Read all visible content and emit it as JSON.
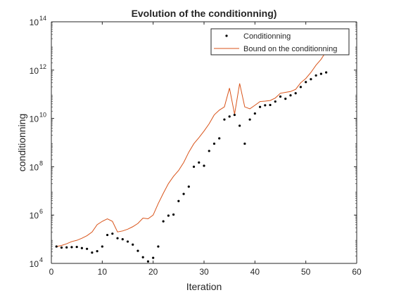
{
  "chart_data": {
    "type": "line",
    "title": "Evolution of the conditionning)",
    "xlabel": "Iteration",
    "ylabel": "conditionning",
    "xlim": [
      0,
      60
    ],
    "ylim": [
      10000,
      100000000000000
    ],
    "yscale": "log",
    "grid": false,
    "legend_position": "top-right",
    "x_ticks": [
      "0",
      "10",
      "20",
      "30",
      "40",
      "50",
      "60"
    ],
    "y_ticks": [
      {
        "base": "10",
        "exp": "4"
      },
      {
        "base": "10",
        "exp": "6"
      },
      {
        "base": "10",
        "exp": "8"
      },
      {
        "base": "10",
        "exp": "10"
      },
      {
        "base": "10",
        "exp": "12"
      },
      {
        "base": "10",
        "exp": "14"
      }
    ],
    "series": [
      {
        "name": "Conditionning",
        "style": "markers",
        "color": "#000000",
        "x": [
          1,
          2,
          3,
          4,
          5,
          6,
          7,
          8,
          9,
          10,
          11,
          12,
          13,
          14,
          15,
          16,
          17,
          18,
          19,
          20,
          21,
          22,
          23,
          24,
          25,
          26,
          27,
          28,
          29,
          30,
          31,
          32,
          33,
          34,
          35,
          36,
          37,
          38,
          39,
          40,
          41,
          42,
          43,
          44,
          45,
          46,
          47,
          48,
          49,
          50,
          51,
          52,
          53,
          54
        ],
        "y": [
          50000,
          45000,
          46000,
          47000,
          48000,
          43000,
          40000,
          28000,
          32000,
          50000,
          150000,
          170000,
          110000,
          100000,
          80000,
          60000,
          33000,
          18000,
          12000,
          17000,
          50000,
          550000,
          950000,
          1050000,
          3800000,
          7500000,
          15000000,
          100000000,
          150000000,
          110000000,
          450000000,
          900000000,
          1500000000,
          9000000000,
          12000000000,
          14000000000,
          5000000000,
          900000000,
          9000000000,
          16000000000,
          30000000000,
          35000000000,
          36000000000,
          50000000000,
          80000000000,
          65000000000,
          90000000000,
          110000000000,
          200000000000,
          320000000000,
          420000000000,
          600000000000,
          700000000000,
          800000000000
        ]
      },
      {
        "name": "Bound on the conditionning",
        "style": "line",
        "color": "#D95319",
        "x": [
          1,
          2,
          3,
          4,
          5,
          6,
          7,
          8,
          9,
          10,
          11,
          12,
          13,
          14,
          15,
          16,
          17,
          18,
          19,
          20,
          21,
          22,
          23,
          24,
          25,
          26,
          27,
          28,
          29,
          30,
          31,
          32,
          33,
          34,
          35,
          36,
          37,
          38,
          39,
          40,
          41,
          42,
          43,
          44,
          45,
          46,
          47,
          48,
          49,
          50,
          51,
          52,
          53,
          54,
          55
        ],
        "y": [
          50000,
          55000,
          65000,
          80000,
          90000,
          110000,
          140000,
          200000,
          400000,
          550000,
          700000,
          550000,
          200000,
          220000,
          260000,
          330000,
          450000,
          750000,
          700000,
          1000000,
          3000000,
          8000000,
          20000000,
          40000000,
          70000000,
          150000000,
          400000000,
          900000000,
          1600000000,
          3000000000,
          6000000000,
          14000000000,
          22000000000,
          30000000000,
          180000000000,
          15000000000,
          280000000000,
          30000000000,
          25000000000,
          35000000000,
          50000000000,
          52000000000,
          55000000000,
          70000000000,
          110000000000,
          120000000000,
          130000000000,
          160000000000,
          300000000000,
          450000000000,
          800000000000,
          1600000000000,
          2800000000000,
          6000000000000,
          10000000000000
        ]
      }
    ]
  }
}
